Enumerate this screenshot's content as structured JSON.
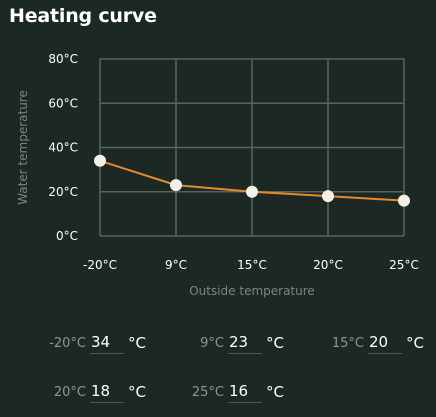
{
  "title": "Heating curve",
  "chart_data": {
    "type": "line",
    "categories": [
      "-20°C",
      "9°C",
      "15°C",
      "20°C",
      "25°C"
    ],
    "values": [
      34,
      23,
      20,
      18,
      16
    ],
    "xlabel": "Outside temperature",
    "ylabel": "Water temperature",
    "yticks": [
      "0°C",
      "20°C",
      "40°C",
      "60°C",
      "80°C"
    ],
    "ylim": [
      0,
      80
    ],
    "grid": true,
    "colors": {
      "line": "#e38b2c",
      "point": "#f3efe6",
      "grid": "#59635f",
      "background": "#1c2824"
    }
  },
  "inputs": [
    {
      "label": "-20°C",
      "value": "34",
      "unit": "°C"
    },
    {
      "label": "9°C",
      "value": "23",
      "unit": "°C"
    },
    {
      "label": "15°C",
      "value": "20",
      "unit": "°C"
    },
    {
      "label": "20°C",
      "value": "18",
      "unit": "°C"
    },
    {
      "label": "25°C",
      "value": "16",
      "unit": "°C"
    }
  ]
}
